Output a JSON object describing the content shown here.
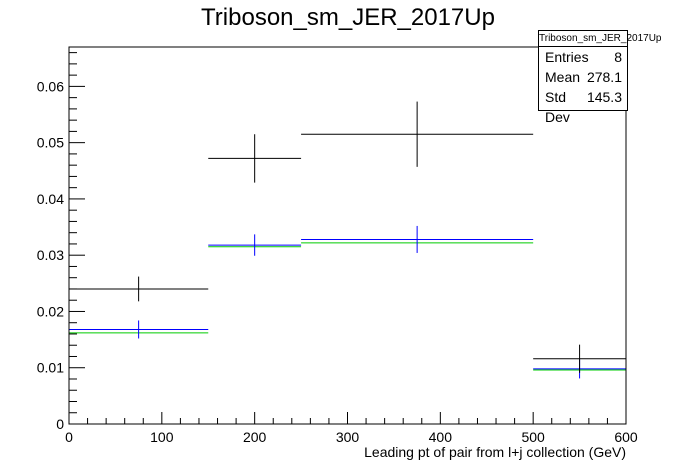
{
  "title": "Triboson_sm_JER_2017Up",
  "stats": {
    "name": "Triboson_sm_JER_2017Up",
    "entries_label": "Entries",
    "entries": "8",
    "mean_label": "Mean",
    "mean": "278.1",
    "stddev_label": "Std Dev",
    "stddev": "145.3"
  },
  "chart_data": {
    "type": "histogram",
    "title": "Triboson_sm_JER_2017Up",
    "xlabel": "Leading pt of pair from l+j collection (GeV)",
    "ylabel": "",
    "xlim": [
      0,
      600
    ],
    "ylim": [
      0,
      0.067
    ],
    "x_ticks": [
      0,
      100,
      200,
      300,
      400,
      500,
      600
    ],
    "y_ticks": [
      0,
      0.01,
      0.02,
      0.03,
      0.04,
      0.05,
      0.06
    ],
    "y_tick_labels": [
      "0",
      "0.01",
      "0.02",
      "0.03",
      "0.04",
      "0.05",
      "0.06"
    ],
    "bins": [
      [
        0,
        150
      ],
      [
        150,
        250
      ],
      [
        250,
        500
      ],
      [
        500,
        600
      ]
    ],
    "series": [
      {
        "color": "#000000",
        "values": [
          0.024,
          0.0472,
          0.0515,
          0.0116
        ],
        "errors": [
          0.0022,
          0.0043,
          0.0058,
          0.0025
        ]
      },
      {
        "color": "#0000ff",
        "values": [
          0.0168,
          0.0318,
          0.0328,
          0.0098
        ],
        "errors": [
          0.0016,
          0.0019,
          0.0024,
          0.0017
        ]
      },
      {
        "color": "#00cc00",
        "values": [
          0.0162,
          0.0315,
          0.0322,
          0.0096
        ],
        "errors": [
          0,
          0,
          0,
          0
        ]
      }
    ],
    "grid": false,
    "legend": "none"
  }
}
